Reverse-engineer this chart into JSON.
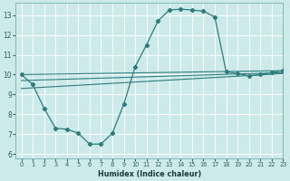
{
  "xlabel": "Humidex (Indice chaleur)",
  "bg_color": "#cceaea",
  "grid_color": "#ffffff",
  "line_color": "#2d7d7d",
  "xlim": [
    -0.5,
    23
  ],
  "ylim": [
    5.8,
    13.6
  ],
  "yticks": [
    6,
    7,
    8,
    9,
    10,
    11,
    12,
    13
  ],
  "xticks": [
    0,
    1,
    2,
    3,
    4,
    5,
    6,
    7,
    8,
    9,
    10,
    11,
    12,
    13,
    14,
    15,
    16,
    17,
    18,
    19,
    20,
    21,
    22,
    23
  ],
  "main_line": {
    "x": [
      0,
      1,
      2,
      3,
      4,
      5,
      6,
      7,
      8,
      9,
      10,
      11,
      12,
      13,
      14,
      15,
      16,
      17,
      18,
      19,
      20,
      21,
      22,
      23
    ],
    "y": [
      10.0,
      9.5,
      8.3,
      7.3,
      7.25,
      7.05,
      6.5,
      6.5,
      7.05,
      8.5,
      10.4,
      11.5,
      12.7,
      13.25,
      13.3,
      13.25,
      13.2,
      12.9,
      10.15,
      10.05,
      9.95,
      10.0,
      10.1,
      10.2
    ]
  },
  "extra_lines": [
    {
      "x": [
        0,
        23
      ],
      "y": [
        10.0,
        10.2
      ]
    },
    {
      "x": [
        0,
        23
      ],
      "y": [
        9.7,
        10.1
      ]
    },
    {
      "x": [
        0,
        23
      ],
      "y": [
        9.3,
        10.05
      ]
    }
  ]
}
